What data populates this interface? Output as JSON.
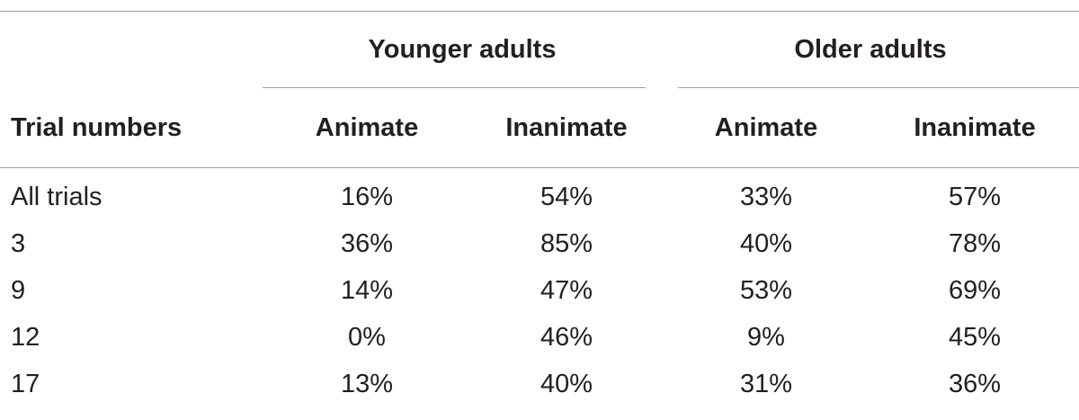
{
  "table": {
    "group_headers": {
      "younger": "Younger adults",
      "older": "Older adults"
    },
    "column_headers": {
      "stub": "Trial numbers",
      "young_animate": "Animate",
      "young_inanimate": "Inanimate",
      "old_animate": "Animate",
      "old_inanimate": "Inanimate"
    },
    "rows": [
      {
        "label": "All trials",
        "young_animate": "16%",
        "young_inanimate": "54%",
        "old_animate": "33%",
        "old_inanimate": "57%"
      },
      {
        "label": "3",
        "young_animate": "36%",
        "young_inanimate": "85%",
        "old_animate": "40%",
        "old_inanimate": "78%"
      },
      {
        "label": "9",
        "young_animate": "14%",
        "young_inanimate": "47%",
        "old_animate": "53%",
        "old_inanimate": "69%"
      },
      {
        "label": "12",
        "young_animate": "0%",
        "young_inanimate": "46%",
        "old_animate": "9%",
        "old_inanimate": "45%"
      },
      {
        "label": "17",
        "young_animate": "13%",
        "young_inanimate": "40%",
        "old_animate": "31%",
        "old_inanimate": "36%"
      }
    ]
  }
}
